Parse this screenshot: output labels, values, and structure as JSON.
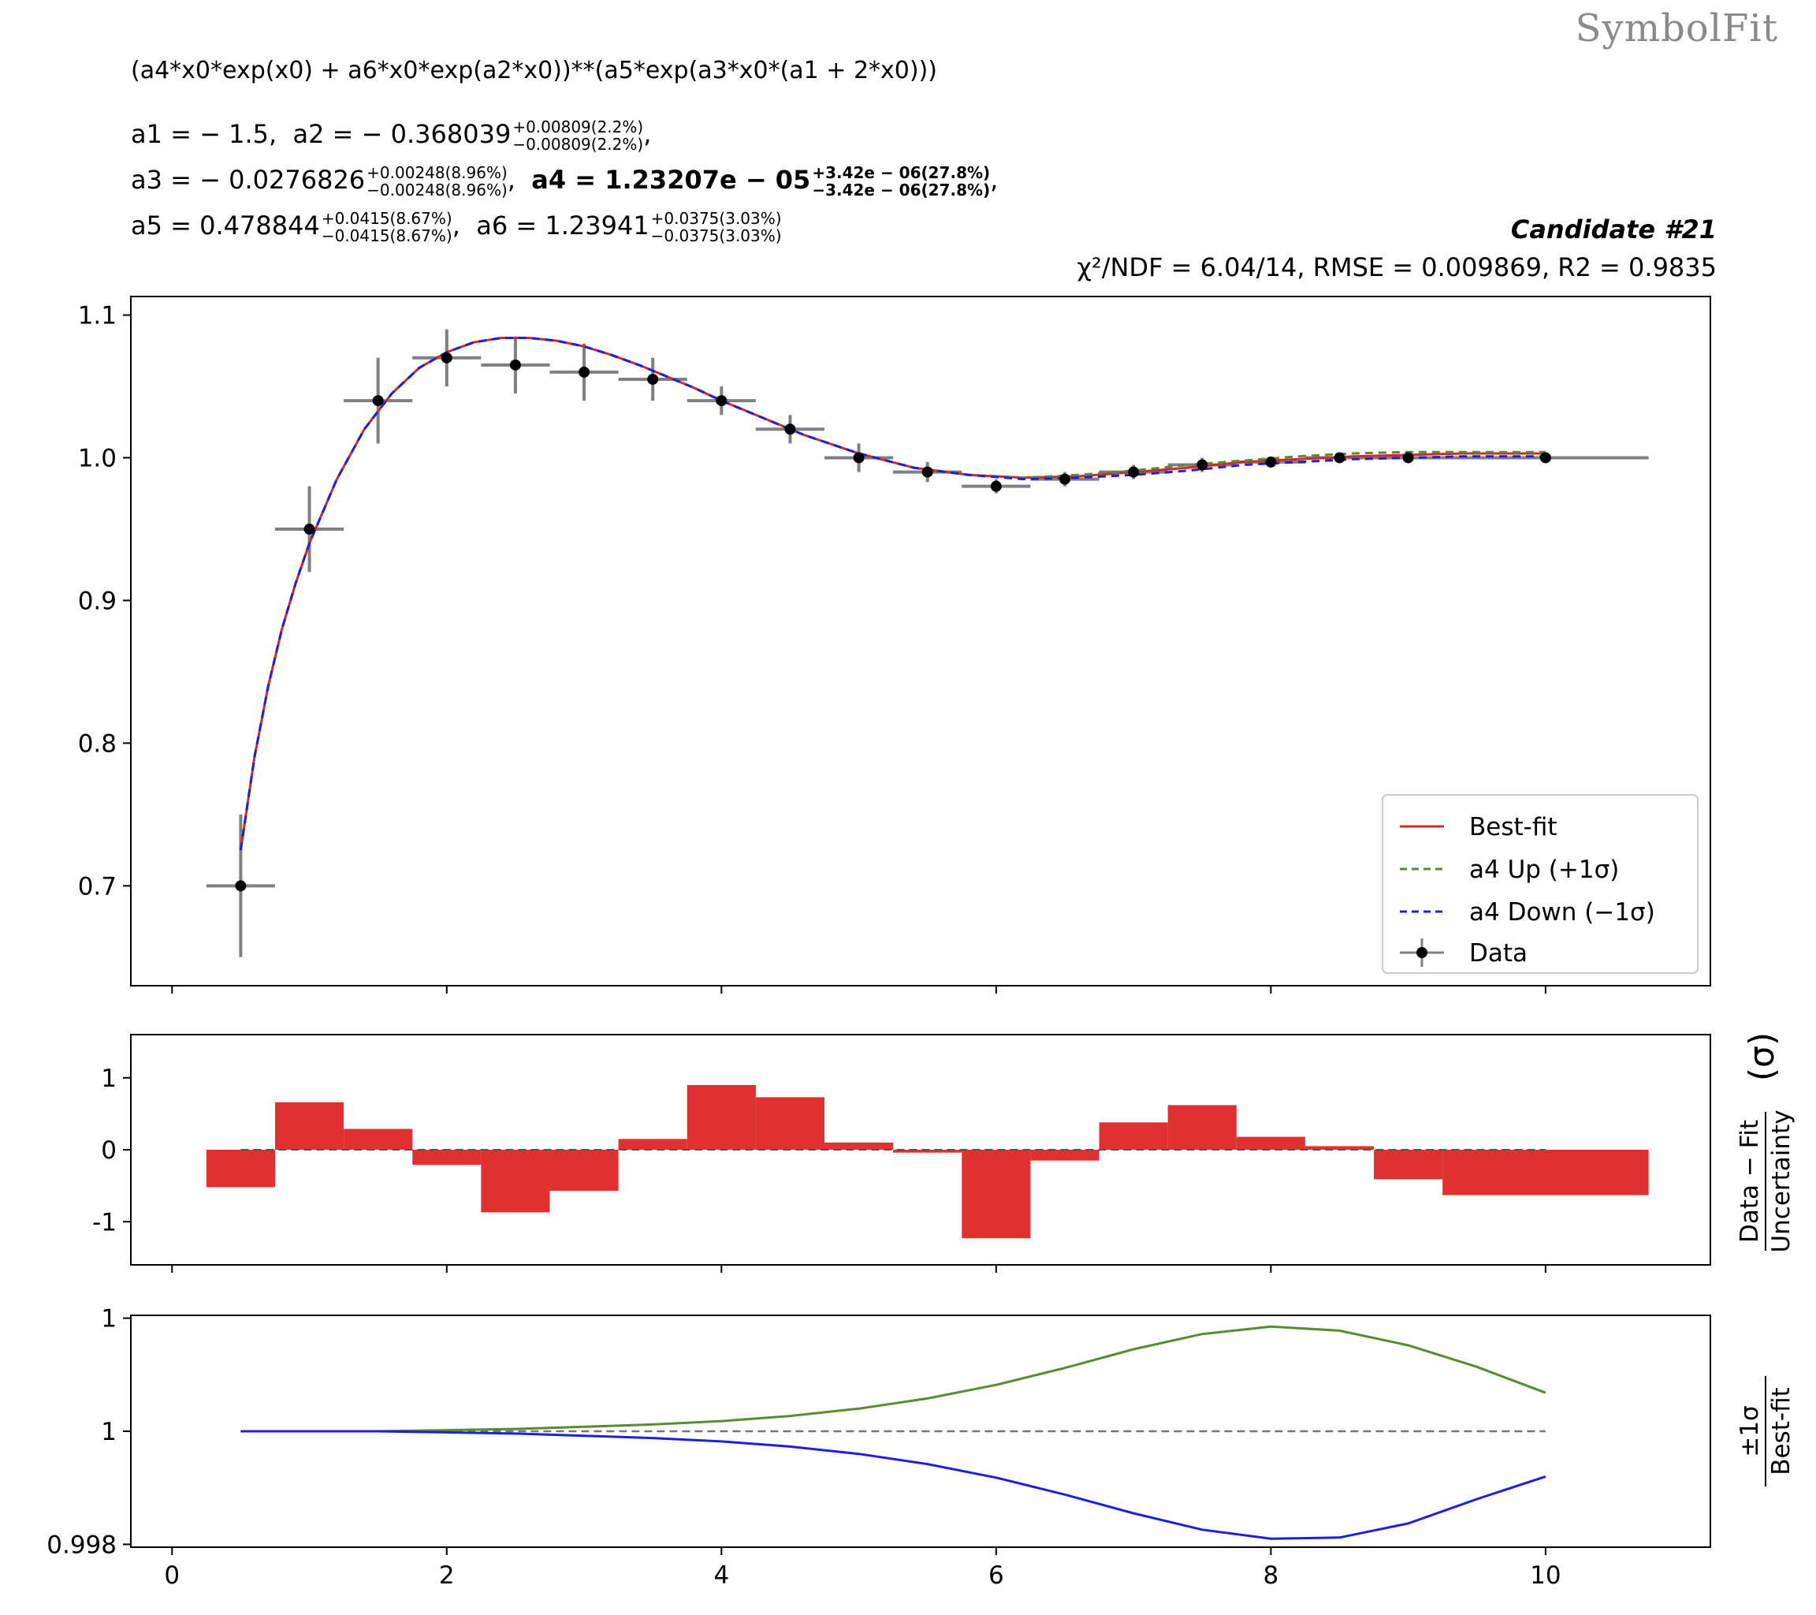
{
  "watermark": "SymbolFit",
  "formula": "(a4*x0*exp(x0) + a6*x0*exp(a2*x0))**(a5*exp(a3*x0*(a1 + 2*x0)))",
  "params": {
    "a1": {
      "label": "a1 = − 1.5,"
    },
    "a2": {
      "label": "a2 = − 0.368039",
      "up": "+0.00809(2.2%)",
      "down": "−0.00809(2.2%)"
    },
    "a3": {
      "label": "a3 = − 0.0276826",
      "up": "+0.00248(8.96%)",
      "down": "−0.00248(8.96%)"
    },
    "a4": {
      "label": "a4 = 1.23207e − 05",
      "up": "+3.42e − 06(27.8%)",
      "down": "−3.42e − 06(27.8%)"
    },
    "a5": {
      "label": "a5 = 0.478844",
      "up": "+0.0415(8.67%)",
      "down": "−0.0415(8.67%)"
    },
    "a6": {
      "label": "a6 = 1.23941",
      "up": "+0.0375(3.03%)",
      "down": "−0.0375(3.03%)"
    }
  },
  "candidate": "Candidate #21",
  "stats": "χ²/NDF = 6.04/14, RMSE = 0.009869, R2 = 0.9835",
  "colors": {
    "bestfit": "#d62728",
    "up": "#5a8a32",
    "down": "#1f1fdd",
    "data": "#000000",
    "errbar": "#808080",
    "residual": "#e03030"
  },
  "chart_data": [
    {
      "type": "scatter",
      "panel": "main",
      "xlim": [
        -0.3,
        11.2
      ],
      "ylim": [
        0.63,
        1.113
      ],
      "yticks": [
        0.7,
        0.8,
        0.9,
        1.0,
        1.1
      ],
      "ytick_labels": [
        "0.7",
        "0.8",
        "0.9",
        "1.0",
        "1.1"
      ],
      "xticks": [
        0,
        2,
        4,
        6,
        8,
        10
      ],
      "legend_position": "lower-right",
      "legend": [
        "Best-fit",
        "a4 Up (+1σ)",
        "a4 Down (−1σ)",
        "Data"
      ],
      "data": {
        "x": [
          0.5,
          1.0,
          1.5,
          2.0,
          2.5,
          3.0,
          3.5,
          4.0,
          4.5,
          5.0,
          5.5,
          6.0,
          6.5,
          7.0,
          7.5,
          8.0,
          8.5,
          9.0,
          10.0
        ],
        "y": [
          0.7,
          0.95,
          1.04,
          1.07,
          1.065,
          1.06,
          1.055,
          1.04,
          1.02,
          1.0,
          0.99,
          0.98,
          0.985,
          0.99,
          0.995,
          0.997,
          1.0,
          1.0,
          1.0
        ],
        "yerr": [
          0.05,
          0.03,
          0.03,
          0.02,
          0.02,
          0.02,
          0.015,
          0.01,
          0.01,
          0.01,
          0.007,
          0.005,
          0.005,
          0.005,
          0.005,
          0.003,
          0.003,
          0.003,
          0.003
        ],
        "xlo": [
          0.25,
          0.75,
          1.25,
          1.75,
          2.25,
          2.75,
          3.25,
          3.75,
          4.25,
          4.75,
          5.25,
          5.75,
          6.25,
          6.75,
          7.25,
          7.75,
          8.25,
          8.75,
          9.25
        ],
        "xhi": [
          0.75,
          1.25,
          1.75,
          2.25,
          2.75,
          3.25,
          3.75,
          4.25,
          4.75,
          5.25,
          5.75,
          6.25,
          6.75,
          7.25,
          7.75,
          8.25,
          8.75,
          9.25,
          10.75
        ]
      },
      "series": [
        {
          "name": "Best-fit",
          "x": [
            0.5,
            0.6,
            0.7,
            0.8,
            0.9,
            1.0,
            1.2,
            1.4,
            1.6,
            1.8,
            2.0,
            2.2,
            2.4,
            2.6,
            2.8,
            3.0,
            3.2,
            3.4,
            3.6,
            3.8,
            4.0,
            4.3,
            4.6,
            5.0,
            5.4,
            5.8,
            6.2,
            6.6,
            7.0,
            7.4,
            7.8,
            8.2,
            8.6,
            9.0,
            9.4,
            10.0
          ],
          "y": [
            0.725,
            0.79,
            0.84,
            0.88,
            0.912,
            0.94,
            0.985,
            1.02,
            1.045,
            1.063,
            1.074,
            1.081,
            1.084,
            1.084,
            1.082,
            1.078,
            1.072,
            1.065,
            1.057,
            1.049,
            1.04,
            1.028,
            1.016,
            1.003,
            0.993,
            0.988,
            0.986,
            0.987,
            0.99,
            0.993,
            0.997,
            0.999,
            1.001,
            1.002,
            1.003,
            1.003
          ]
        },
        {
          "name": "a4 Up (+1σ)",
          "x": [
            0.5,
            0.6,
            0.7,
            0.8,
            0.9,
            1.0,
            1.2,
            1.4,
            1.6,
            1.8,
            2.0,
            2.2,
            2.4,
            2.6,
            2.8,
            3.0,
            3.2,
            3.4,
            3.6,
            3.8,
            4.0,
            4.3,
            4.6,
            5.0,
            5.4,
            5.8,
            6.2,
            6.6,
            7.0,
            7.4,
            7.8,
            8.2,
            8.6,
            9.0,
            9.4,
            10.0
          ],
          "y": [
            0.725,
            0.79,
            0.84,
            0.88,
            0.912,
            0.94,
            0.985,
            1.02,
            1.045,
            1.063,
            1.074,
            1.081,
            1.084,
            1.084,
            1.082,
            1.078,
            1.072,
            1.065,
            1.057,
            1.049,
            1.04,
            1.028,
            1.016,
            1.003,
            0.993,
            0.988,
            0.986,
            0.988,
            0.991,
            0.995,
            0.998,
            1.001,
            1.003,
            1.004,
            1.004,
            1.004
          ]
        },
        {
          "name": "a4 Down (−1σ)",
          "x": [
            0.5,
            0.6,
            0.7,
            0.8,
            0.9,
            1.0,
            1.2,
            1.4,
            1.6,
            1.8,
            2.0,
            2.2,
            2.4,
            2.6,
            2.8,
            3.0,
            3.2,
            3.4,
            3.6,
            3.8,
            4.0,
            4.3,
            4.6,
            5.0,
            5.4,
            5.8,
            6.2,
            6.6,
            7.0,
            7.4,
            7.8,
            8.2,
            8.6,
            9.0,
            9.4,
            10.0
          ],
          "y": [
            0.725,
            0.79,
            0.84,
            0.88,
            0.912,
            0.94,
            0.985,
            1.02,
            1.045,
            1.063,
            1.074,
            1.081,
            1.084,
            1.084,
            1.082,
            1.078,
            1.072,
            1.065,
            1.057,
            1.049,
            1.04,
            1.028,
            1.016,
            1.003,
            0.993,
            0.988,
            0.985,
            0.986,
            0.988,
            0.991,
            0.995,
            0.997,
            0.999,
            1.0,
            1.001,
            1.001
          ]
        }
      ]
    },
    {
      "type": "bar",
      "panel": "residual",
      "ylabel": "Data − Fit / Uncertainty (σ)",
      "ylabel_num": "Data − Fit",
      "ylabel_den": "Uncertainty",
      "ylabel_unit": "(σ)",
      "xlim": [
        -0.3,
        11.2
      ],
      "ylim": [
        -1.6,
        1.6
      ],
      "yticks": [
        1,
        0,
        -1
      ],
      "ytick_labels": [
        "1",
        "0",
        "-1"
      ],
      "xticks": [
        0,
        2,
        4,
        6,
        8,
        10
      ],
      "bins": [
        [
          0.25,
          0.75
        ],
        [
          0.75,
          1.25
        ],
        [
          1.25,
          1.75
        ],
        [
          1.75,
          2.25
        ],
        [
          2.25,
          2.75
        ],
        [
          2.75,
          3.25
        ],
        [
          3.25,
          3.75
        ],
        [
          3.75,
          4.25
        ],
        [
          4.25,
          4.75
        ],
        [
          4.75,
          5.25
        ],
        [
          5.25,
          5.75
        ],
        [
          5.75,
          6.25
        ],
        [
          6.25,
          6.75
        ],
        [
          6.75,
          7.25
        ],
        [
          7.25,
          7.75
        ],
        [
          7.75,
          8.25
        ],
        [
          8.25,
          8.75
        ],
        [
          8.75,
          9.25
        ],
        [
          9.25,
          10.75
        ]
      ],
      "values": [
        -0.52,
        0.66,
        0.29,
        -0.21,
        -0.87,
        -0.57,
        0.15,
        0.9,
        0.73,
        0.1,
        -0.04,
        -1.23,
        -0.15,
        0.38,
        0.62,
        0.18,
        0.05,
        -0.41,
        -0.63
      ]
    },
    {
      "type": "line",
      "panel": "ratio",
      "ylabel": "±1σ / Best-fit",
      "ylabel_num": "±1σ",
      "ylabel_den": "Best-fit",
      "xlim": [
        -0.3,
        11.2
      ],
      "ylim": [
        0.99795,
        1.00205
      ],
      "yticks": [
        1.002,
        1.0,
        0.998
      ],
      "ytick_labels": [
        "1",
        "1",
        "0.998"
      ],
      "xticks": [
        0,
        2,
        4,
        6,
        8,
        10
      ],
      "xtick_labels": [
        "0",
        "2",
        "4",
        "6",
        "8",
        "10"
      ],
      "series": [
        {
          "name": "a4 Up (+1σ)",
          "x": [
            0.5,
            1.0,
            1.5,
            2.0,
            2.5,
            3.0,
            3.5,
            4.0,
            4.5,
            5.0,
            5.5,
            6.0,
            6.5,
            7.0,
            7.5,
            8.0,
            8.5,
            9.0,
            9.5,
            10.0
          ],
          "y": [
            1.0,
            1.0,
            1.0,
            1.00002,
            1.00004,
            1.00008,
            1.00012,
            1.00018,
            1.00027,
            1.0004,
            1.00058,
            1.00082,
            1.00112,
            1.00145,
            1.00172,
            1.00185,
            1.00178,
            1.00152,
            1.00114,
            1.00068
          ]
        },
        {
          "name": "a4 Down (−1σ)",
          "x": [
            0.5,
            1.0,
            1.5,
            2.0,
            2.5,
            3.0,
            3.5,
            4.0,
            4.5,
            5.0,
            5.5,
            6.0,
            6.5,
            7.0,
            7.5,
            8.0,
            8.5,
            9.0,
            9.5,
            10.0
          ],
          "y": [
            1.0,
            1.0,
            1.0,
            0.99998,
            0.99996,
            0.99992,
            0.99988,
            0.99982,
            0.99973,
            0.9996,
            0.99942,
            0.99918,
            0.99888,
            0.99855,
            0.99826,
            0.9981,
            0.99812,
            0.99837,
            0.9988,
            0.9992
          ]
        }
      ]
    }
  ]
}
